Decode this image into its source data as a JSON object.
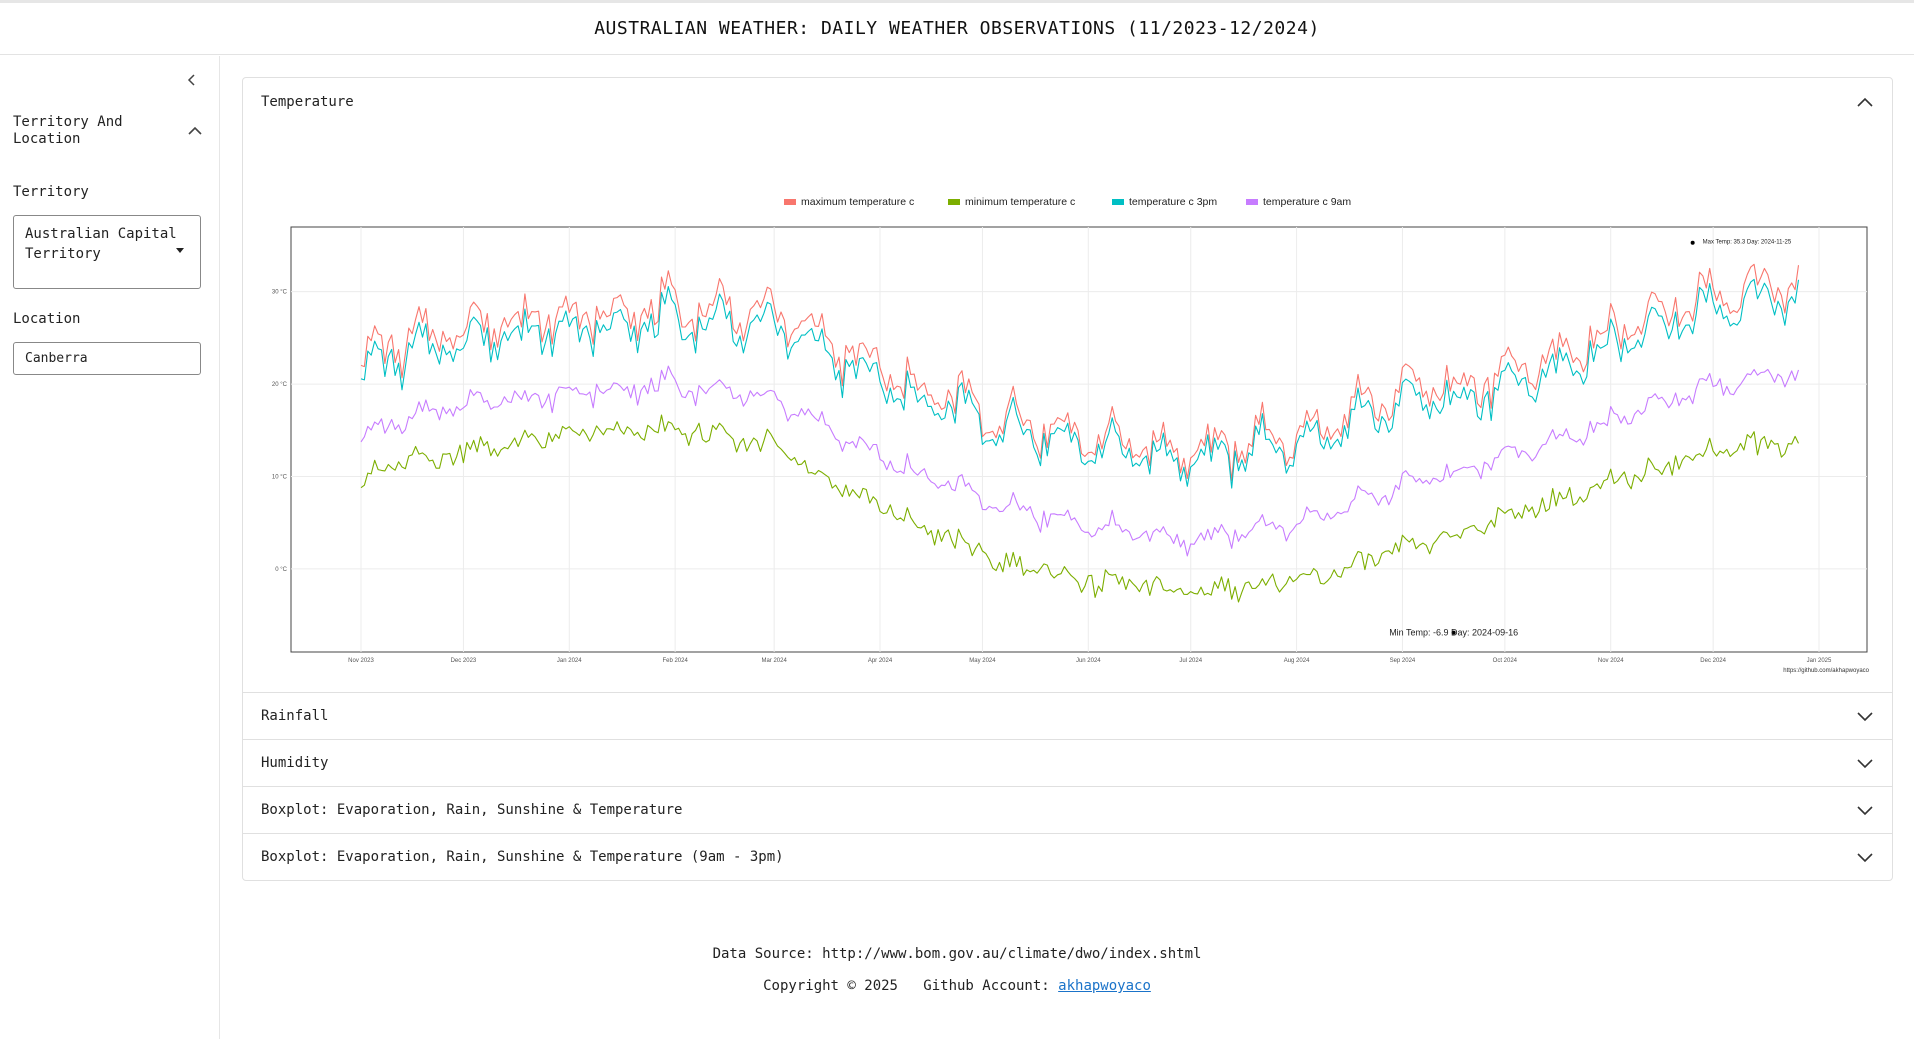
{
  "header": {
    "title": "AUSTRALIAN WEATHER: DAILY WEATHER OBSERVATIONS (11/2023-12/2024)"
  },
  "sidebar": {
    "section_title": "Territory And Location",
    "territory_label": "Territory",
    "territory_value": "Australian Capital Territory",
    "location_label": "Location",
    "location_value": "Canberra",
    "location_placeholder": "Canberra"
  },
  "panels": [
    {
      "label": "Temperature",
      "expanded": true
    },
    {
      "label": "Rainfall",
      "expanded": false
    },
    {
      "label": "Humidity",
      "expanded": false
    },
    {
      "label": "Boxplot: Evaporation, Rain, Sunshine & Temperature",
      "expanded": false
    },
    {
      "label": "Boxplot: Evaporation, Rain, Sunshine & Temperature (9am - 3pm)",
      "expanded": false
    }
  ],
  "chart_data": {
    "type": "line",
    "title": "",
    "xlabel": "",
    "ylabel": "",
    "ylim": [
      -9,
      37
    ],
    "y_ticks": [
      0,
      10,
      20,
      30
    ],
    "y_tick_labels": [
      "0 °C",
      "10 °C",
      "20 °C",
      "30 °C"
    ],
    "x_tick_labels": [
      "Nov 2023",
      "Dec 2023",
      "Jan 2024",
      "Feb 2024",
      "Mar 2024",
      "Apr 2024",
      "May 2024",
      "Jun 2024",
      "Jul 2024",
      "Aug 2024",
      "Sep 2024",
      "Oct 2024",
      "Nov 2024",
      "Dec 2024",
      "Jan 2025"
    ],
    "x_tick_dates": [
      "2023-11-01",
      "2023-12-01",
      "2024-01-01",
      "2024-02-01",
      "2024-03-01",
      "2024-04-01",
      "2024-05-01",
      "2024-06-01",
      "2024-07-01",
      "2024-08-01",
      "2024-09-01",
      "2024-10-01",
      "2024-11-01",
      "2024-12-01",
      "2025-01-01"
    ],
    "x_range": [
      "2023-11-01",
      "2024-12-26"
    ],
    "legend_position": "top",
    "grid": true,
    "series": [
      {
        "name": "maximum temperature c",
        "color": "#F8766D",
        "monthly_values": [
          23.0,
          26.5,
          27.5,
          28.5,
          28.0,
          21.5,
          17.0,
          14.0,
          12.5,
          14.5,
          19.5,
          20.5,
          25.5,
          30.0,
          31.5
        ]
      },
      {
        "name": "minimum temperature c",
        "color": "#7CAE00",
        "monthly_values": [
          10.0,
          13.0,
          14.5,
          15.0,
          13.5,
          6.5,
          1.5,
          -1.5,
          -2.5,
          -1.5,
          2.0,
          5.5,
          9.0,
          13.0,
          14.0
        ]
      },
      {
        "name": "temperature c 3pm",
        "color": "#00BFC4",
        "monthly_values": [
          21.5,
          25.0,
          26.0,
          27.0,
          26.5,
          20.0,
          16.0,
          13.0,
          11.5,
          13.5,
          18.0,
          19.0,
          24.0,
          28.5,
          30.0
        ]
      },
      {
        "name": "temperature c 9am",
        "color": "#C77CFF",
        "monthly_values": [
          14.5,
          18.0,
          19.0,
          20.0,
          18.5,
          12.0,
          7.5,
          4.5,
          3.0,
          5.0,
          9.0,
          12.0,
          16.0,
          20.0,
          21.5
        ]
      }
    ],
    "annotations": [
      {
        "text": "Max Temp: 35.3 Day: 2024-11-25",
        "x": "2024-11-25",
        "y": 35.3
      },
      {
        "text": "Min Temp: -6.9 Day: 2024-09-16",
        "x": "2024-09-16",
        "y": -6.9
      }
    ],
    "caption": "https://github.com/akhapwoyaco"
  },
  "footer": {
    "source_text": "Data Source: http://www.bom.gov.au/climate/dwo/index.shtml",
    "copyright_text": "Copyright © 2025",
    "github_label": "Github Account:",
    "github_link": "akhapwoyaco"
  }
}
